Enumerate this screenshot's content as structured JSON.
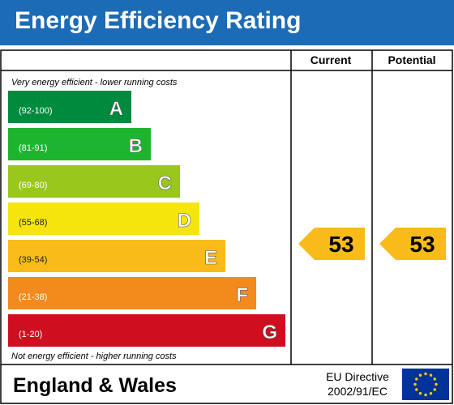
{
  "header": {
    "title": "Energy Efficiency Rating",
    "background": "#1c6bb6"
  },
  "columns": {
    "current": "Current",
    "potential": "Potential"
  },
  "captions": {
    "top": "Very energy efficient - lower running costs",
    "bottom": "Not energy efficient - higher running costs"
  },
  "footer": {
    "region": "England & Wales",
    "directive_line1": "EU Directive",
    "directive_line2": "2002/91/EC",
    "flag_icon": "eu-flag-icon"
  },
  "chart_data": {
    "type": "bar",
    "categories": [
      "A",
      "B",
      "C",
      "D",
      "E",
      "F",
      "G"
    ],
    "ranges": [
      "(92-100)",
      "(81-91)",
      "(69-80)",
      "(55-68)",
      "(39-54)",
      "(21-38)",
      "(1-20)"
    ],
    "colors": [
      "#008a3e",
      "#1db530",
      "#99c71c",
      "#f5e50d",
      "#f9bb1a",
      "#f28a1c",
      "#cf0f1f"
    ],
    "current": 53,
    "potential": 53,
    "indicator_color": "#f9bb1a"
  }
}
